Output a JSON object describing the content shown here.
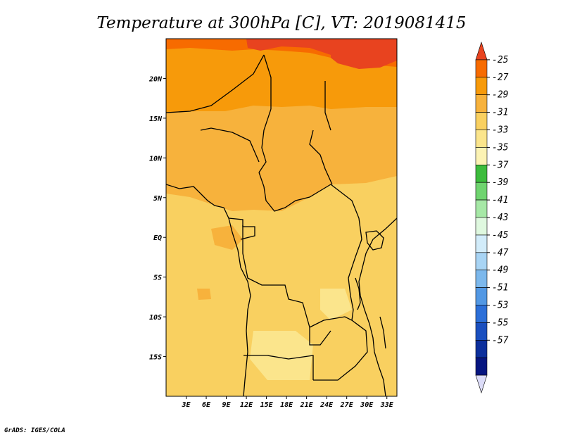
{
  "chart_data": {
    "type": "heatmap",
    "title": "Temperature at 300hPa [C], VT: 2019081415",
    "x_tick_labels": [
      "3E",
      "6E",
      "9E",
      "12E",
      "15E",
      "18E",
      "21E",
      "24E",
      "27E",
      "30E",
      "33E"
    ],
    "x_tick_values": [
      3,
      6,
      9,
      12,
      15,
      18,
      21,
      24,
      27,
      30,
      33
    ],
    "y_tick_labels": [
      "20N",
      "15N",
      "10N",
      "5N",
      "EQ",
      "5S",
      "10S",
      "15S"
    ],
    "y_tick_values": [
      20,
      15,
      10,
      5,
      0,
      -5,
      -10,
      -15
    ],
    "xlim": [
      0,
      34.5
    ],
    "ylim": [
      -20,
      25
    ],
    "colorbar": {
      "labels": [
        "-25",
        "-27",
        "-29",
        "-31",
        "-33",
        "-35",
        "-37",
        "-39",
        "-41",
        "-43",
        "-45",
        "-47",
        "-49",
        "-51",
        "-53",
        "-55",
        "-57"
      ],
      "colors": [
        "#e8431f",
        "#f76b00",
        "#f79a0a",
        "#f7b23c",
        "#f9d060",
        "#fbe58c",
        "#fcf3b4",
        "#3cbc3c",
        "#6fd46f",
        "#a6e8a6",
        "#dff8df",
        "#d2ecfa",
        "#a8d4f4",
        "#7cb8ec",
        "#5298e4",
        "#2c6fd8",
        "#1a4fbf",
        "#0c2f9c",
        "#061580",
        "#dcdcf8"
      ]
    },
    "temperature_regions": [
      {
        "value": -26,
        "color": "#f76b00",
        "area": "northern Sahara band 20N-25N (Algeria/Libya/Egypt)"
      },
      {
        "value": -28,
        "color": "#f79a0a",
        "area": "Sahel 15N-21N"
      },
      {
        "value": -30,
        "color": "#f7b23c",
        "area": "5N-15N, Central Africa north"
      },
      {
        "value": -32,
        "color": "#f9d060",
        "area": "equatorial belt and southern Africa"
      },
      {
        "value": -34,
        "color": "#fbe58c",
        "area": "southern Angola/Zambia patches"
      }
    ],
    "credit": "GrADS: IGES/COLA"
  }
}
